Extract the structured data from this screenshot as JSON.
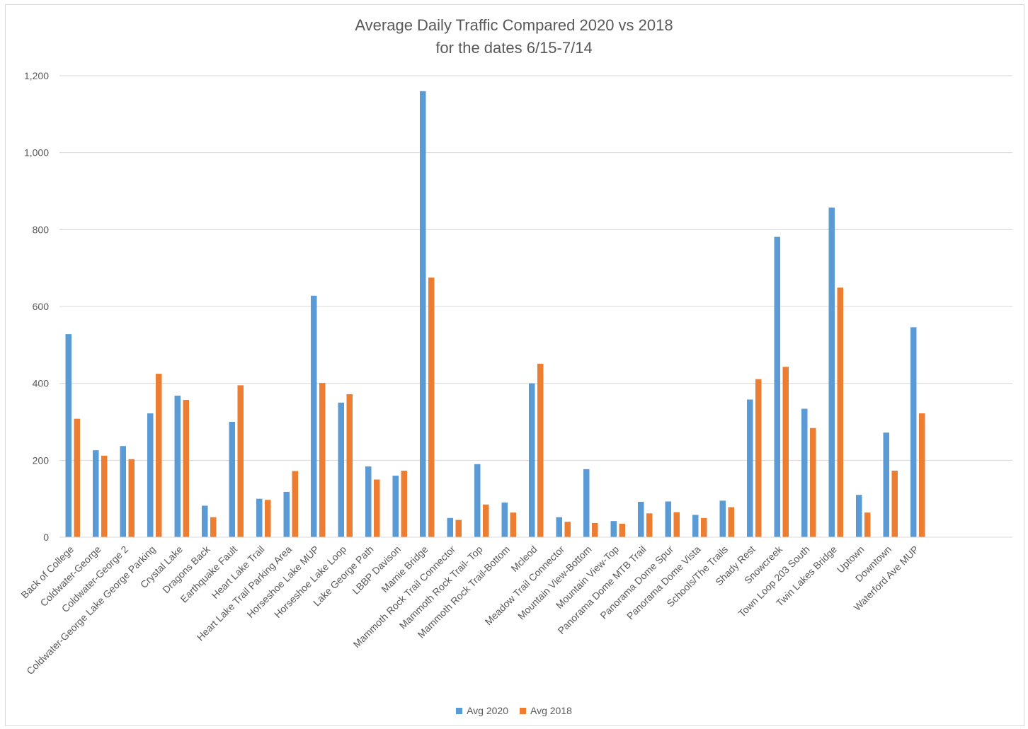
{
  "chart_data": {
    "type": "bar",
    "title": "Average Daily Traffic Compared 2020 vs 2018",
    "subtitle": "for the dates 6/15-7/14",
    "xlabel": "",
    "ylabel": "",
    "ylim": [
      0,
      1200
    ],
    "yticks": [
      0,
      200,
      400,
      600,
      800,
      1000,
      1200
    ],
    "ytick_labels": [
      "0",
      "200",
      "400",
      "600",
      "800",
      "1,000",
      "1,200"
    ],
    "grid": true,
    "legend_position": "bottom",
    "categories": [
      "Back of College",
      "Coldwater-George",
      "Coldwater-George 2",
      "Coldwater-George Lake George Parking",
      "Crystal Lake",
      "Dragons Back",
      "Earthquake Fault",
      "Heart Lake Trail",
      "Heart Lake Trail Parking Area",
      "Horseshoe Lake MUP",
      "Horseshoe Lake Loop",
      "Lake George Path",
      "LBBP Davison",
      "Mamie Bridge",
      "Mammoth Rock Trail Connector",
      "Mammoth Rock Trail- Top",
      "Mammoth Rock Trail-Bottom",
      "Mcleod",
      "Meadow Trail Connector",
      "Mountain View-Bottom",
      "Mountain View-Top",
      "Panorama Dome MTB Trail",
      "Panorama Dome Spur",
      "Panorama Dome Vista",
      "Schools/The Trails",
      "Shady Rest",
      "Snowcreek",
      "Town Loop 203 South",
      "Twin Lakes Bridge",
      "Uptown",
      "Downtown",
      "Waterford Ave MUP"
    ],
    "series": [
      {
        "name": "Avg 2020",
        "color": "#5b9bd5",
        "values": [
          528,
          226,
          237,
          322,
          368,
          82,
          300,
          100,
          118,
          628,
          350,
          184,
          160,
          1160,
          50,
          190,
          90,
          400,
          52,
          177,
          42,
          92,
          93,
          58,
          95,
          358,
          781,
          334,
          857,
          110,
          272,
          546
        ]
      },
      {
        "name": "Avg 2018",
        "color": "#ed7d31",
        "values": [
          308,
          212,
          203,
          425,
          357,
          52,
          395,
          97,
          172,
          401,
          372,
          150,
          173,
          675,
          45,
          85,
          64,
          451,
          40,
          37,
          35,
          62,
          65,
          50,
          78,
          411,
          443,
          284,
          649,
          64,
          173,
          322
        ]
      }
    ]
  }
}
